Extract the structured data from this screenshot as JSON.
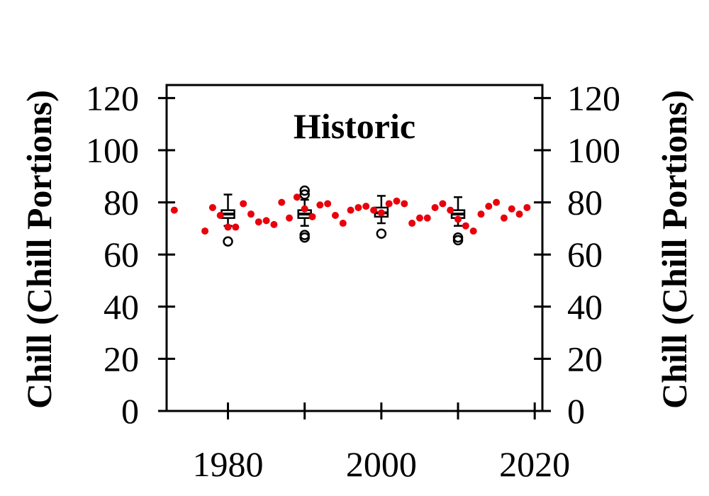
{
  "chart_data": {
    "type": "scatter",
    "title": "Historic",
    "ylabel_left": "Chill (Chill Portions)",
    "ylabel_right": "Chill (Chill Portions)",
    "xlabel": "",
    "xlim": [
      1972,
      2021
    ],
    "ylim": [
      0,
      125
    ],
    "x_ticks": [
      1980,
      1990,
      2000,
      2010,
      2020
    ],
    "x_tick_labels": [
      "1980",
      "2000",
      "2020"
    ],
    "y_ticks": [
      0,
      20,
      40,
      60,
      80,
      100,
      120
    ],
    "y_tick_labels": [
      "0",
      "20",
      "40",
      "60",
      "80",
      "100",
      "120"
    ],
    "grid": false,
    "legend": "none",
    "colors": {
      "points": "#e8000b",
      "boxes": "#000000"
    },
    "observed": {
      "x": [
        1973,
        1977,
        1978,
        1979,
        1980,
        1981,
        1982,
        1983,
        1984,
        1985,
        1986,
        1987,
        1988,
        1989,
        1990,
        1991,
        1992,
        1993,
        1994,
        1995,
        1996,
        1997,
        1998,
        1999,
        2000,
        2001,
        2002,
        2003,
        2004,
        2005,
        2006,
        2007,
        2008,
        2009,
        2010,
        2011,
        2012,
        2013,
        2014,
        2015,
        2016,
        2017,
        2018,
        2019
      ],
      "y": [
        77,
        69,
        78,
        75,
        70.5,
        70.5,
        79.5,
        75.5,
        72.5,
        73,
        71.5,
        80,
        74,
        82,
        77.5,
        74.5,
        79,
        79.5,
        75,
        72,
        77,
        78,
        78.5,
        77,
        76,
        79.5,
        80.5,
        79.5,
        72,
        74,
        74,
        78,
        79.5,
        77,
        73.5,
        71,
        69,
        75.5,
        78.5,
        80,
        74,
        77.5,
        75.5,
        78
      ]
    },
    "boxplots": [
      {
        "x": 1980,
        "q1": 74,
        "median": 75.5,
        "q3": 77,
        "whisker_low": 71,
        "whisker_high": 83,
        "outliers": [
          65
        ]
      },
      {
        "x": 1990,
        "q1": 74,
        "median": 75.5,
        "q3": 77,
        "whisker_low": 71,
        "whisker_high": 81,
        "outliers": [
          66.5,
          67.5,
          83,
          84.5
        ]
      },
      {
        "x": 2000,
        "q1": 74.5,
        "median": 76,
        "q3": 78,
        "whisker_low": 72,
        "whisker_high": 82.5,
        "outliers": [
          68
        ]
      },
      {
        "x": 2010,
        "q1": 74,
        "median": 75.5,
        "q3": 77,
        "whisker_low": 71,
        "whisker_high": 82,
        "outliers": [
          65.5,
          66.5
        ]
      }
    ]
  }
}
